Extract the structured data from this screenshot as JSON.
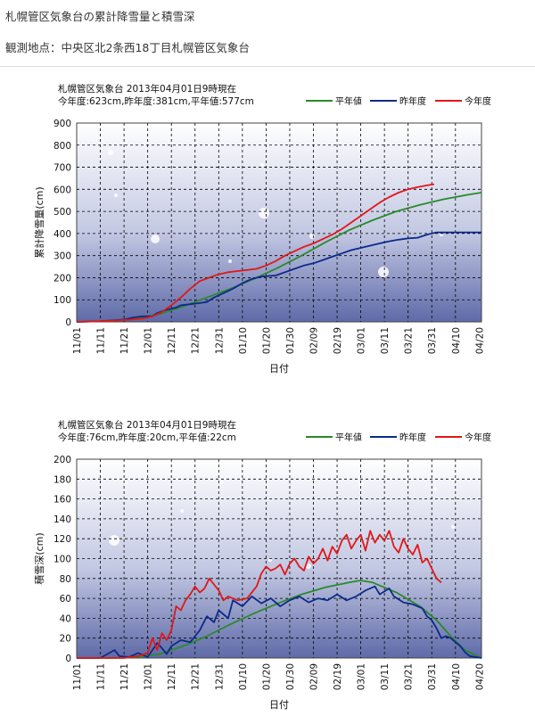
{
  "header": {
    "title": "札幌管区気象台の累計降雪量と積雪深",
    "location": "観測地点：中央区北2条西18丁目札幌管区気象台"
  },
  "legend_labels": [
    "平年値",
    "昨年度",
    "今年度"
  ],
  "colors": {
    "normal": "#2a8a2a",
    "last_year": "#0b2a8a",
    "this_year": "#e01818"
  },
  "x_tick_labels": [
    "11/01",
    "11/11",
    "11/21",
    "12/01",
    "12/11",
    "12/21",
    "12/31",
    "01/10",
    "01/20",
    "01/30",
    "02/09",
    "02/19",
    "03/01",
    "03/11",
    "03/21",
    "03/31",
    "04/10",
    "04/20"
  ],
  "x_label": "日付",
  "chart_data": [
    {
      "type": "line",
      "title_line1": "札幌管区気象台  2013年04月01日9時現在",
      "title_line2": "今年度:623cm,昨年度:381cm,平年値:577cm",
      "ylabel": "累計降雪量(cm)",
      "ylim": [
        0,
        900
      ],
      "yticks": [
        0,
        100,
        200,
        300,
        400,
        500,
        600,
        700,
        800,
        900
      ],
      "x_days": 171,
      "grid": true,
      "series": [
        {
          "name": "平年値",
          "key": "normal",
          "points": [
            [
              0,
              0
            ],
            [
              15,
              5
            ],
            [
              25,
              15
            ],
            [
              35,
              35
            ],
            [
              45,
              70
            ],
            [
              55,
              110
            ],
            [
              65,
              150
            ],
            [
              75,
              195
            ],
            [
              85,
              245
            ],
            [
              95,
              300
            ],
            [
              105,
              360
            ],
            [
              115,
              415
            ],
            [
              125,
              460
            ],
            [
              135,
              500
            ],
            [
              145,
              530
            ],
            [
              155,
              555
            ],
            [
              165,
              575
            ],
            [
              171,
              585
            ]
          ]
        },
        {
          "name": "昨年度",
          "key": "last_year",
          "points": [
            [
              0,
              0
            ],
            [
              10,
              3
            ],
            [
              20,
              10
            ],
            [
              24,
              20
            ],
            [
              28,
              25
            ],
            [
              32,
              25
            ],
            [
              34,
              40
            ],
            [
              38,
              55
            ],
            [
              42,
              65
            ],
            [
              44,
              75
            ],
            [
              48,
              80
            ],
            [
              52,
              85
            ],
            [
              55,
              90
            ],
            [
              58,
              110
            ],
            [
              62,
              130
            ],
            [
              66,
              150
            ],
            [
              70,
              175
            ],
            [
              74,
              195
            ],
            [
              78,
              205
            ],
            [
              84,
              210
            ],
            [
              88,
              225
            ],
            [
              92,
              240
            ],
            [
              96,
              255
            ],
            [
              100,
              265
            ],
            [
              104,
              280
            ],
            [
              108,
              295
            ],
            [
              112,
              310
            ],
            [
              116,
              325
            ],
            [
              120,
              335
            ],
            [
              124,
              345
            ],
            [
              128,
              355
            ],
            [
              132,
              365
            ],
            [
              136,
              372
            ],
            [
              140,
              378
            ],
            [
              144,
              381
            ],
            [
              148,
              395
            ],
            [
              152,
              405
            ],
            [
              160,
              405
            ],
            [
              171,
              405
            ]
          ]
        },
        {
          "name": "今年度",
          "key": "this_year",
          "points": [
            [
              0,
              0
            ],
            [
              10,
              3
            ],
            [
              20,
              8
            ],
            [
              28,
              15
            ],
            [
              32,
              25
            ],
            [
              36,
              45
            ],
            [
              40,
              75
            ],
            [
              44,
              110
            ],
            [
              48,
              150
            ],
            [
              52,
              185
            ],
            [
              56,
              200
            ],
            [
              60,
              215
            ],
            [
              64,
              225
            ],
            [
              68,
              230
            ],
            [
              72,
              235
            ],
            [
              76,
              240
            ],
            [
              80,
              255
            ],
            [
              84,
              275
            ],
            [
              88,
              300
            ],
            [
              92,
              320
            ],
            [
              96,
              340
            ],
            [
              100,
              355
            ],
            [
              104,
              375
            ],
            [
              108,
              395
            ],
            [
              112,
              420
            ],
            [
              116,
              450
            ],
            [
              120,
              480
            ],
            [
              124,
              510
            ],
            [
              128,
              540
            ],
            [
              132,
              565
            ],
            [
              136,
              585
            ],
            [
              140,
              600
            ],
            [
              144,
              610
            ],
            [
              148,
              618
            ],
            [
              151,
              623
            ]
          ]
        }
      ]
    },
    {
      "type": "line",
      "title_line1": "札幌管区気象台  2013年04月01日9時現在",
      "title_line2": "今年度:76cm,昨年度:20cm,平年値:22cm",
      "ylabel": "積雪深(cm)",
      "ylim": [
        0,
        200
      ],
      "yticks": [
        0,
        20,
        40,
        60,
        80,
        100,
        120,
        140,
        160,
        180,
        200
      ],
      "x_days": 171,
      "grid": true,
      "series": [
        {
          "name": "平年値",
          "key": "normal",
          "points": [
            [
              0,
              0
            ],
            [
              15,
              0
            ],
            [
              25,
              1
            ],
            [
              35,
              4
            ],
            [
              45,
              12
            ],
            [
              55,
              22
            ],
            [
              65,
              34
            ],
            [
              75,
              45
            ],
            [
              85,
              55
            ],
            [
              95,
              64
            ],
            [
              105,
              71
            ],
            [
              115,
              76
            ],
            [
              120,
              78
            ],
            [
              125,
              76
            ],
            [
              135,
              66
            ],
            [
              145,
              52
            ],
            [
              152,
              38
            ],
            [
              158,
              22
            ],
            [
              164,
              8
            ],
            [
              171,
              0
            ]
          ]
        },
        {
          "name": "昨年度",
          "key": "last_year",
          "points": [
            [
              0,
              0
            ],
            [
              10,
              0
            ],
            [
              16,
              8
            ],
            [
              18,
              2
            ],
            [
              22,
              1
            ],
            [
              26,
              5
            ],
            [
              30,
              1
            ],
            [
              34,
              15
            ],
            [
              36,
              10
            ],
            [
              38,
              4
            ],
            [
              40,
              12
            ],
            [
              44,
              18
            ],
            [
              48,
              16
            ],
            [
              52,
              28
            ],
            [
              55,
              42
            ],
            [
              58,
              36
            ],
            [
              60,
              48
            ],
            [
              64,
              40
            ],
            [
              66,
              58
            ],
            [
              70,
              52
            ],
            [
              74,
              62
            ],
            [
              78,
              55
            ],
            [
              82,
              60
            ],
            [
              86,
              52
            ],
            [
              90,
              58
            ],
            [
              94,
              62
            ],
            [
              98,
              56
            ],
            [
              102,
              60
            ],
            [
              106,
              58
            ],
            [
              110,
              64
            ],
            [
              114,
              58
            ],
            [
              118,
              62
            ],
            [
              122,
              68
            ],
            [
              126,
              72
            ],
            [
              128,
              64
            ],
            [
              132,
              70
            ],
            [
              134,
              62
            ],
            [
              138,
              56
            ],
            [
              142,
              54
            ],
            [
              146,
              50
            ],
            [
              148,
              42
            ],
            [
              150,
              38
            ],
            [
              152,
              30
            ],
            [
              154,
              20
            ],
            [
              156,
              22
            ],
            [
              158,
              20
            ],
            [
              160,
              16
            ],
            [
              162,
              12
            ],
            [
              164,
              6
            ],
            [
              166,
              2
            ],
            [
              171,
              0
            ]
          ]
        },
        {
          "name": "今年度",
          "key": "this_year",
          "points": [
            [
              0,
              0
            ],
            [
              20,
              0
            ],
            [
              26,
              2
            ],
            [
              30,
              5
            ],
            [
              32,
              20
            ],
            [
              34,
              8
            ],
            [
              36,
              25
            ],
            [
              38,
              18
            ],
            [
              40,
              28
            ],
            [
              42,
              52
            ],
            [
              44,
              48
            ],
            [
              46,
              58
            ],
            [
              48,
              64
            ],
            [
              50,
              72
            ],
            [
              52,
              66
            ],
            [
              54,
              70
            ],
            [
              56,
              80
            ],
            [
              58,
              74
            ],
            [
              60,
              68
            ],
            [
              62,
              58
            ],
            [
              64,
              62
            ],
            [
              68,
              58
            ],
            [
              72,
              60
            ],
            [
              76,
              72
            ],
            [
              78,
              85
            ],
            [
              80,
              92
            ],
            [
              82,
              88
            ],
            [
              84,
              90
            ],
            [
              86,
              94
            ],
            [
              88,
              84
            ],
            [
              90,
              95
            ],
            [
              92,
              100
            ],
            [
              94,
              92
            ],
            [
              96,
              88
            ],
            [
              98,
              102
            ],
            [
              100,
              95
            ],
            [
              102,
              100
            ],
            [
              104,
              110
            ],
            [
              106,
              98
            ],
            [
              108,
              112
            ],
            [
              110,
              105
            ],
            [
              112,
              118
            ],
            [
              114,
              124
            ],
            [
              116,
              110
            ],
            [
              118,
              118
            ],
            [
              120,
              124
            ],
            [
              122,
              108
            ],
            [
              124,
              128
            ],
            [
              126,
              116
            ],
            [
              128,
              124
            ],
            [
              130,
              118
            ],
            [
              132,
              128
            ],
            [
              134,
              112
            ],
            [
              136,
              106
            ],
            [
              138,
              120
            ],
            [
              140,
              110
            ],
            [
              142,
              104
            ],
            [
              144,
              114
            ],
            [
              146,
              96
            ],
            [
              148,
              100
            ],
            [
              150,
              90
            ],
            [
              152,
              80
            ],
            [
              154,
              76
            ]
          ]
        }
      ]
    }
  ]
}
